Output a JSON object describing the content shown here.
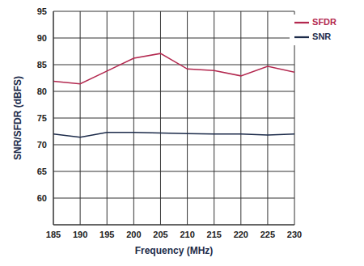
{
  "chart_data": {
    "type": "line",
    "x_label": "Frequency (MHz)",
    "y_label": "SNR/SFDR (dBFS)",
    "x": [
      185,
      190,
      195,
      200,
      205,
      210,
      215,
      220,
      225,
      230
    ],
    "series": [
      {
        "name": "SNR",
        "color": "#1c2b4a",
        "values": [
          72.0,
          71.4,
          72.3,
          72.3,
          72.2,
          72.1,
          72.0,
          72.0,
          71.8,
          72.0
        ]
      },
      {
        "name": "SFDR",
        "color": "#b3284f",
        "values": [
          81.9,
          81.4,
          83.8,
          86.2,
          87.1,
          84.2,
          83.9,
          82.9,
          84.7,
          83.6
        ]
      }
    ],
    "xlim": [
      185,
      230
    ],
    "xticks": [
      185,
      190,
      195,
      200,
      205,
      210,
      215,
      220,
      225,
      230
    ],
    "ylim": [
      55,
      95
    ],
    "yticks": [
      60,
      65,
      70,
      75,
      80,
      85,
      90,
      95
    ],
    "grid": true,
    "legend": "upper right"
  }
}
